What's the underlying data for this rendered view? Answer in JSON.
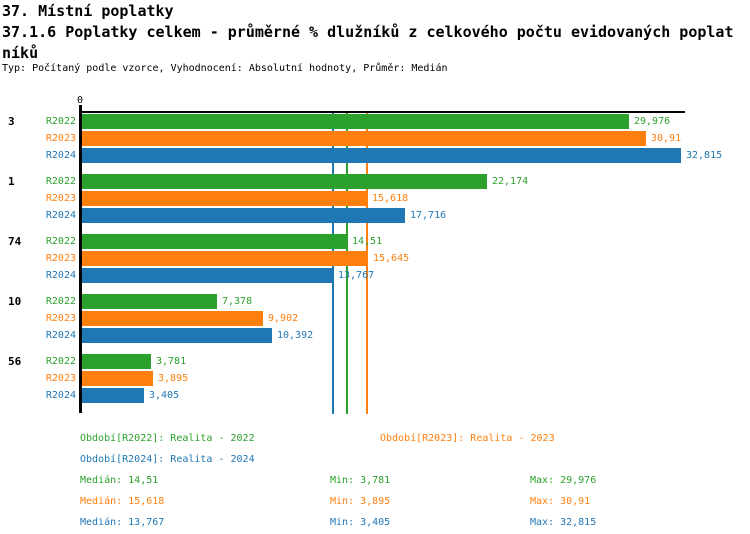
{
  "page": {
    "background": "#ffffff"
  },
  "header": {
    "title_line1": "37. Místní poplatky",
    "title_line2": "37.1.6 Poplatky celkem - průměrné % dlužníků z celkového počtu evidovaných poplat",
    "title_line3": "níků",
    "meta_line": "Typ: Počítaný podle vzorce, Vyhodnocení: Absolutní hodnoty, Průměr: Medián"
  },
  "colors": {
    "r2022_green": "#2ca02c",
    "r2023_orange": "#ff7f0e",
    "r2024_blue": "#1f77b4",
    "axis_black": "#000000"
  },
  "chart_data": {
    "type": "bar",
    "orientation": "horizontal_grouped",
    "title": "37.1.6 Poplatky celkem - průměrné % dlužníků z celkového počtu evidovaných poplatníků",
    "categories": [
      "3",
      "1",
      "74",
      "10",
      "56"
    ],
    "series": [
      {
        "name": "R2022",
        "legend": "Období[R2022]: Realita - 2022",
        "color": "#2ca02c",
        "values": [
          29.976,
          22.174,
          14.51,
          7.378,
          3.781
        ],
        "value_labels": [
          "29,976",
          "22,174",
          "14,51",
          "7,378",
          "3,781"
        ],
        "median": 14.51
      },
      {
        "name": "R2023",
        "legend": "Období[R2023]: Realita - 2023",
        "color": "#ff7f0e",
        "values": [
          30.91,
          15.618,
          15.645,
          9.902,
          3.895
        ],
        "value_labels": [
          "30,91",
          "15,618",
          "15,645",
          "9,902",
          "3,895"
        ],
        "median": 15.618
      },
      {
        "name": "R2024",
        "legend": "Období[R2024]: Realita - 2024",
        "color": "#1f77b4",
        "values": [
          32.815,
          17.716,
          13.767,
          10.392,
          3.405
        ],
        "value_labels": [
          "32,815",
          "17,716",
          "13,767",
          "10,392",
          "3,405"
        ],
        "median": 13.767
      }
    ],
    "median_lines": [
      {
        "series": "R2022",
        "value": 14.51,
        "color": "#2ca02c"
      },
      {
        "series": "R2023",
        "value": 15.618,
        "color": "#ff7f0e"
      },
      {
        "series": "R2024",
        "value": 13.767,
        "color": "#1f77b4"
      }
    ],
    "x_axis": {
      "zero_tick_label": "0",
      "xlim": [
        0,
        33.2
      ],
      "grid": false
    },
    "legend_position": "bottom"
  },
  "legend": {
    "items": [
      {
        "text": "Období[R2022]: Realita - 2022",
        "color": "#2ca02c"
      },
      {
        "text": "Období[R2023]: Realita - 2023",
        "color": "#ff7f0e"
      },
      {
        "text": "Období[R2024]: Realita - 2024",
        "color": "#1f77b4"
      }
    ]
  },
  "stats": {
    "rows": [
      {
        "median": "Medián: 14,51",
        "min": "Min: 3,781",
        "max": "Max: 29,976",
        "color": "#2ca02c"
      },
      {
        "median": "Medián: 15,618",
        "min": "Min: 3,895",
        "max": "Max: 30,91",
        "color": "#ff7f0e"
      },
      {
        "median": "Medián: 13,767",
        "min": "Min: 3,405",
        "max": "Max: 32,815",
        "color": "#1f77b4"
      }
    ]
  }
}
